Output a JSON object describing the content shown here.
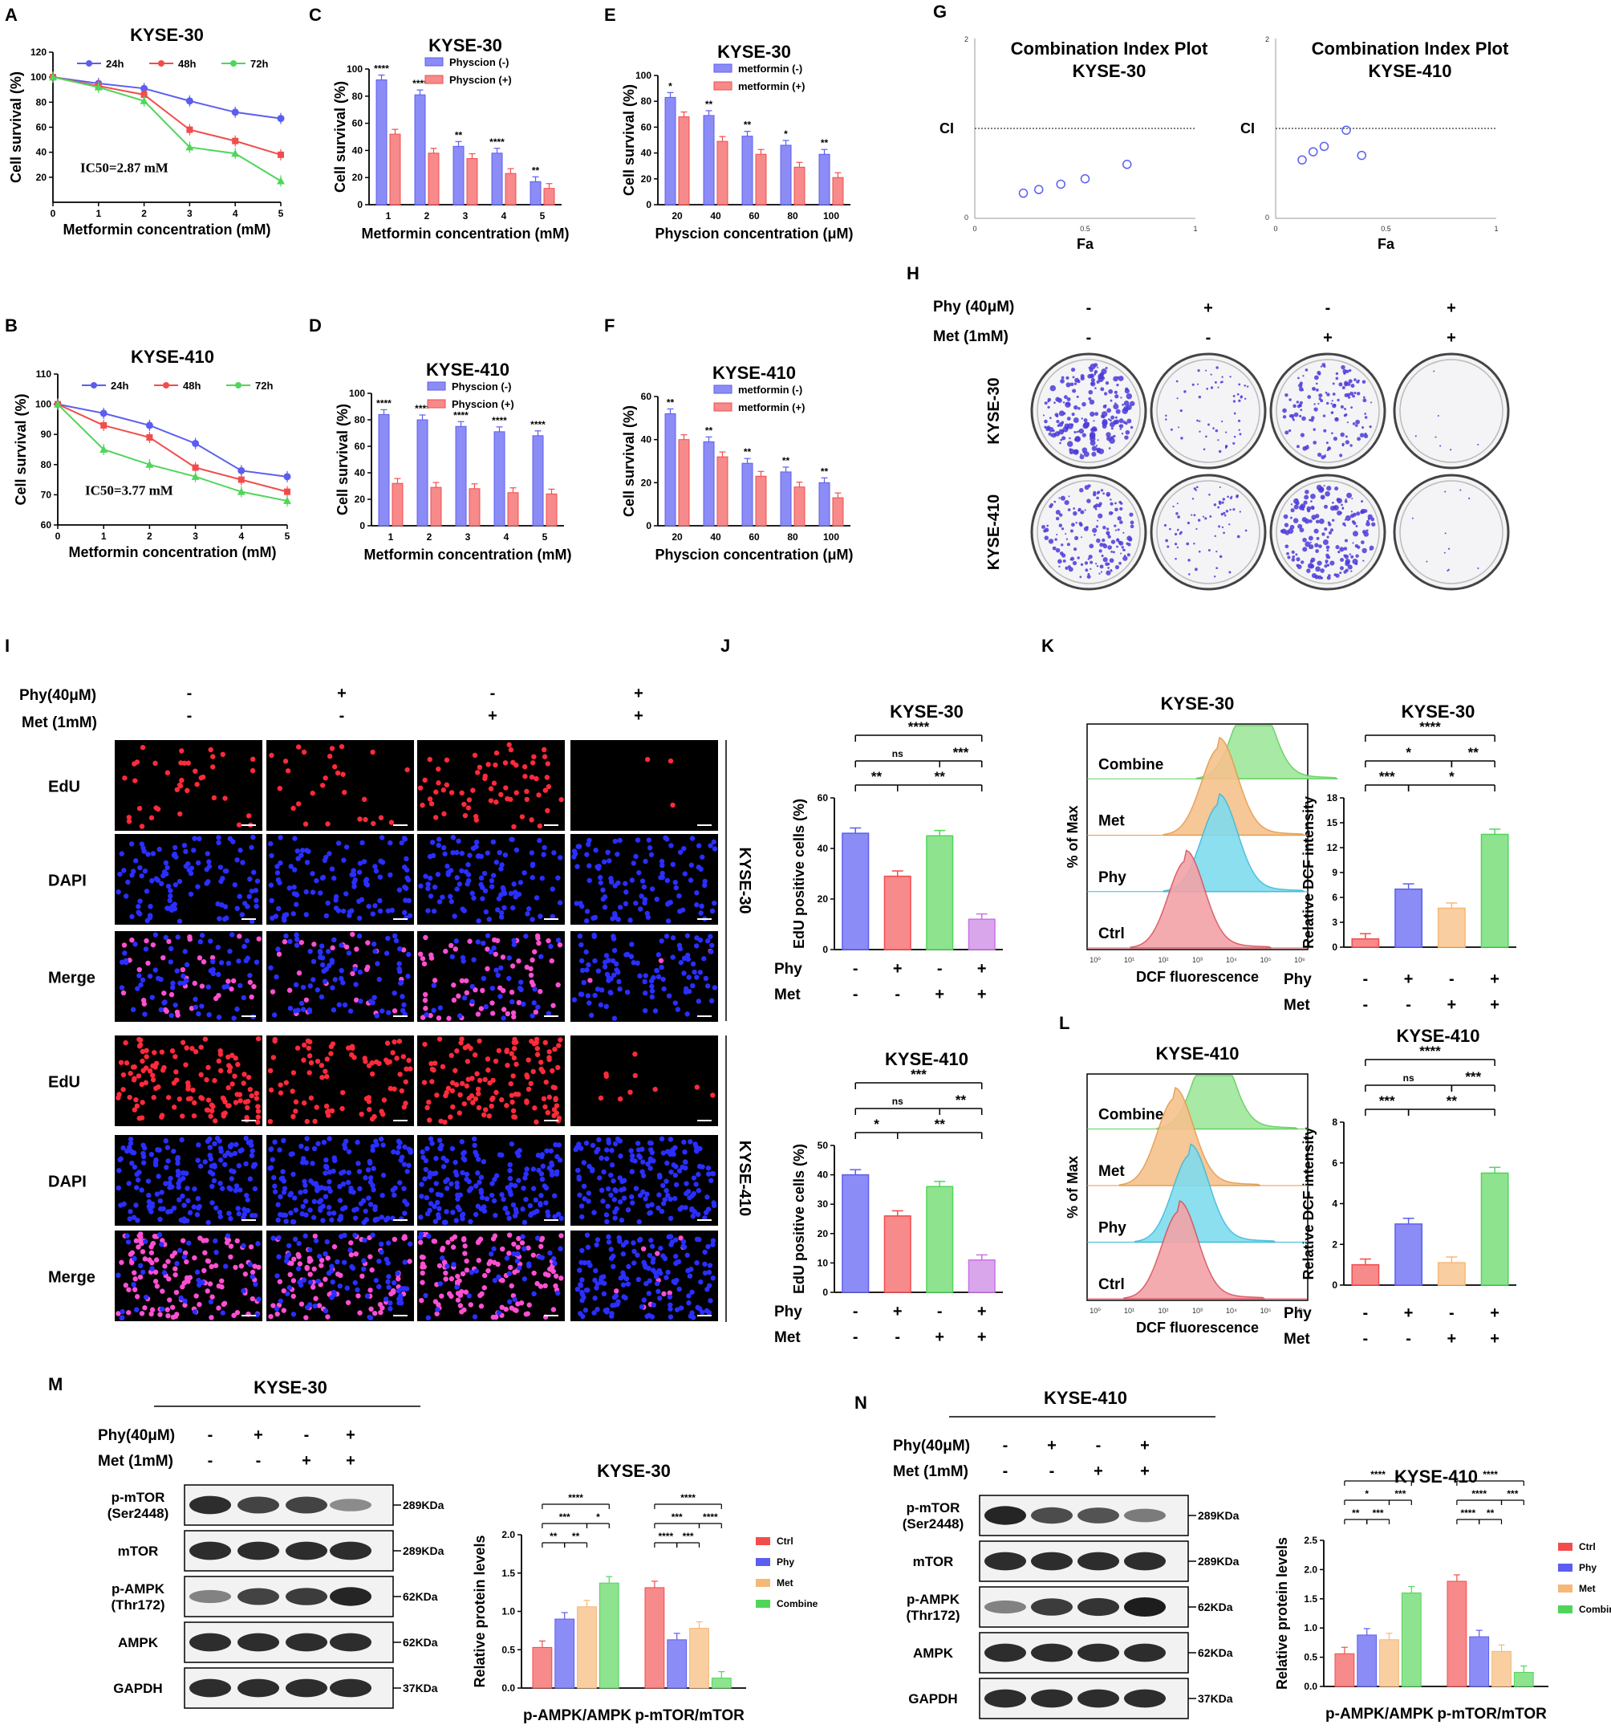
{
  "panel_letters": {
    "A": "A",
    "B": "B",
    "C": "C",
    "D": "D",
    "E": "E",
    "F": "F",
    "G": "G",
    "H": "H",
    "I": "I",
    "J": "J",
    "K": "K",
    "L": "L",
    "M": "M",
    "N": "N"
  },
  "colors": {
    "blue": "#5b5ef0",
    "red": "#f24c4c",
    "green": "#4fd65a",
    "orange": "#f6b877",
    "purple": "#c873e6",
    "ltblue": "#8c8cf6",
    "ltred": "#f78a8a",
    "ltgreen": "#8ee38e",
    "ltorange": "#f9cfa1",
    "ltpurple": "#d9a6ec"
  },
  "chart_data": [
    {
      "panel": "A",
      "type": "line",
      "title": "KYSE-30",
      "xlabel": "Metformin concentration (mM)",
      "ylabel": "Cell survival (%)",
      "x": [
        0,
        1,
        2,
        3,
        4,
        5
      ],
      "xlim": [
        0,
        5
      ],
      "ylim": [
        0,
        120
      ],
      "yticks": [
        20,
        40,
        60,
        80,
        100,
        120
      ],
      "series": [
        {
          "name": "24h",
          "values": [
            100,
            95,
            91,
            81,
            72,
            67
          ]
        },
        {
          "name": "48h",
          "values": [
            100,
            93,
            86,
            58,
            49,
            38
          ]
        },
        {
          "name": "72h",
          "values": [
            100,
            92,
            81,
            44,
            39,
            17
          ]
        }
      ],
      "annotation": "IC50=2.87 mM"
    },
    {
      "panel": "B",
      "type": "line",
      "title": "KYSE-410",
      "xlabel": "Metformin concentration (mM)",
      "ylabel": "Cell survival (%)",
      "x": [
        0,
        1,
        2,
        3,
        4,
        5
      ],
      "xlim": [
        0,
        5
      ],
      "ylim": [
        60,
        110
      ],
      "yticks": [
        60,
        70,
        80,
        90,
        100,
        110
      ],
      "series": [
        {
          "name": "24h",
          "values": [
            100,
            97,
            93,
            87,
            78,
            76
          ]
        },
        {
          "name": "48h",
          "values": [
            100,
            93,
            89,
            79,
            75,
            71
          ]
        },
        {
          "name": "72h",
          "values": [
            100,
            85,
            80,
            76,
            71,
            68
          ]
        }
      ],
      "annotation": "IC50=3.77 mM"
    },
    {
      "panel": "C",
      "type": "bar",
      "title": "KYSE-30",
      "xlabel": "Metformin concentration (mM)",
      "ylabel": "Cell survival (%)",
      "categories": [
        "1",
        "2",
        "3",
        "4",
        "5"
      ],
      "ylim": [
        0,
        100
      ],
      "yticks": [
        0,
        20,
        40,
        60,
        80,
        100
      ],
      "series": [
        {
          "name": "Physcion (-)",
          "values": [
            92,
            81,
            43,
            38,
            17
          ]
        },
        {
          "name": "Physcion (+)",
          "values": [
            52,
            38,
            34,
            23,
            12
          ]
        }
      ],
      "significance": [
        "****",
        "****",
        "**",
        "****",
        "**"
      ]
    },
    {
      "panel": "D",
      "type": "bar",
      "title": "KYSE-410",
      "xlabel": "Metformin concentration (mM)",
      "ylabel": "Cell survival (%)",
      "categories": [
        "1",
        "2",
        "3",
        "4",
        "5"
      ],
      "ylim": [
        0,
        100
      ],
      "yticks": [
        0,
        20,
        40,
        60,
        80,
        100
      ],
      "series": [
        {
          "name": "Physcion (-)",
          "values": [
            84,
            80,
            75,
            71,
            68
          ]
        },
        {
          "name": "Physcion (+)",
          "values": [
            32,
            29,
            28,
            25,
            24
          ]
        }
      ],
      "significance": [
        "****",
        "****",
        "****",
        "****",
        "****"
      ]
    },
    {
      "panel": "E",
      "type": "bar",
      "title": "KYSE-30",
      "xlabel": "Physcion concentration (μM)",
      "ylabel": "Cell survival (%)",
      "categories": [
        "20",
        "40",
        "60",
        "80",
        "100"
      ],
      "ylim": [
        0,
        100
      ],
      "yticks": [
        0,
        20,
        40,
        60,
        80,
        100
      ],
      "series": [
        {
          "name": "metformin (-)",
          "values": [
            83,
            69,
            53,
            46,
            39
          ]
        },
        {
          "name": "metformin (+)",
          "values": [
            68,
            49,
            39,
            29,
            21
          ]
        }
      ],
      "significance": [
        "*",
        "**",
        "**",
        "*",
        "**"
      ]
    },
    {
      "panel": "F",
      "type": "bar",
      "title": "KYSE-410",
      "xlabel": "Physcion concentration (μM)",
      "ylabel": "Cell survival (%)",
      "categories": [
        "20",
        "40",
        "60",
        "80",
        "100"
      ],
      "ylim": [
        0,
        60
      ],
      "yticks": [
        0,
        20,
        40,
        60
      ],
      "series": [
        {
          "name": "metformin (-)",
          "values": [
            52,
            39,
            29,
            25,
            20
          ]
        },
        {
          "name": "metformin (+)",
          "values": [
            40,
            32,
            23,
            18,
            13
          ]
        }
      ],
      "significance": [
        "**",
        "**",
        "**",
        "**",
        "**"
      ]
    },
    {
      "panel": "G1",
      "type": "scatter",
      "title": "Combination Index Plot",
      "subtitle": "KYSE-30",
      "xlabel": "Fa",
      "ylabel": "CI",
      "xlim": [
        0,
        1
      ],
      "ylim": [
        0,
        2
      ],
      "xticks": [
        "0",
        "0.5",
        "1"
      ],
      "yticks": [
        "0",
        "2"
      ],
      "reference_line": 1,
      "x": [
        0.22,
        0.29,
        0.39,
        0.5,
        0.69
      ],
      "y": [
        0.28,
        0.32,
        0.38,
        0.44,
        0.6
      ]
    },
    {
      "panel": "G2",
      "type": "scatter",
      "title": "Combination Index Plot",
      "subtitle": "KYSE-410",
      "xlabel": "Fa",
      "ylabel": "CI",
      "xlim": [
        0,
        1
      ],
      "ylim": [
        0,
        2
      ],
      "xticks": [
        "0",
        "0.5",
        "1"
      ],
      "yticks": [
        "0",
        "2"
      ],
      "reference_line": 1,
      "x": [
        0.12,
        0.17,
        0.22,
        0.32,
        0.39
      ],
      "y": [
        0.65,
        0.74,
        0.8,
        0.98,
        0.7
      ]
    },
    {
      "panel": "J1",
      "type": "bar",
      "title": "KYSE-30",
      "ylabel": "EdU positive cells  (%)",
      "categories": [
        "Ctrl",
        "Phy",
        "Met",
        "Combine"
      ],
      "ylim": [
        0,
        60
      ],
      "yticks": [
        0,
        20,
        40,
        60
      ],
      "values": [
        46,
        29,
        45,
        12
      ],
      "comparisons": [
        [
          "****",
          "1-4"
        ],
        [
          "ns",
          "1-3"
        ],
        [
          "***",
          "3-4"
        ],
        [
          "**",
          "1-2"
        ],
        [
          "**",
          "2-4"
        ]
      ]
    },
    {
      "panel": "J2",
      "type": "bar",
      "title": "KYSE-410",
      "ylabel": "EdU positive cells  (%)",
      "categories": [
        "Ctrl",
        "Phy",
        "Met",
        "Combine"
      ],
      "ylim": [
        0,
        50
      ],
      "yticks": [
        0,
        10,
        20,
        30,
        40,
        50
      ],
      "values": [
        40,
        26,
        36,
        11
      ],
      "comparisons": [
        [
          "***",
          "1-4"
        ],
        [
          "ns",
          "1-3"
        ],
        [
          "**",
          "3-4"
        ],
        [
          "*",
          "1-2"
        ],
        [
          "**",
          "2-4"
        ]
      ]
    },
    {
      "panel": "K",
      "type": "bar",
      "title": "KYSE-30",
      "ylabel": "Relative DCF intensity",
      "categories": [
        "Ctrl",
        "Phy",
        "Met",
        "Combine"
      ],
      "ylim": [
        0,
        18
      ],
      "yticks": [
        0,
        3,
        6,
        9,
        12,
        15,
        18
      ],
      "values": [
        1,
        7,
        4.7,
        13.6
      ],
      "comparisons": [
        [
          "****",
          "1-4"
        ],
        [
          "*",
          "1-3"
        ],
        [
          "**",
          "3-4"
        ],
        [
          "***",
          "1-2"
        ],
        [
          "*",
          "2-4"
        ]
      ]
    },
    {
      "panel": "L",
      "type": "bar",
      "title": "KYSE-410",
      "ylabel": "Relative DCF intensity",
      "categories": [
        "Ctrl",
        "Phy",
        "Met",
        "Combine"
      ],
      "ylim": [
        0,
        8
      ],
      "yticks": [
        0,
        2,
        4,
        6,
        8
      ],
      "values": [
        1,
        3,
        1.1,
        5.5
      ],
      "comparisons": [
        [
          "****",
          "1-4"
        ],
        [
          "ns",
          "1-3"
        ],
        [
          "***",
          "3-4"
        ],
        [
          "***",
          "1-2"
        ],
        [
          "**",
          "2-4"
        ]
      ]
    },
    {
      "panel": "M",
      "type": "bar",
      "title": "KYSE-30",
      "ylabel": "Relative protein levels",
      "categories": [
        "p-AMPK/AMPK",
        "p-mTOR/mTOR"
      ],
      "ylim": [
        0,
        2
      ],
      "yticks": [
        0.0,
        0.5,
        1.0,
        1.5,
        2.0
      ],
      "series": [
        {
          "name": "Ctrl",
          "values": [
            0.53,
            1.31
          ]
        },
        {
          "name": "Phy",
          "values": [
            0.9,
            0.63
          ]
        },
        {
          "name": "Met",
          "values": [
            1.06,
            0.78
          ]
        },
        {
          "name": "Combine",
          "values": [
            1.37,
            0.13
          ]
        }
      ],
      "sig_left": [
        "****",
        "***",
        "*",
        "**",
        "**"
      ],
      "sig_right": [
        "****",
        "***",
        "****",
        "****",
        "***"
      ]
    },
    {
      "panel": "N",
      "type": "bar",
      "title": "KYSE-410",
      "ylabel": "Relative protein levels",
      "categories": [
        "p-AMPK/AMPK",
        "p-mTOR/mTOR"
      ],
      "ylim": [
        0,
        2.5
      ],
      "yticks": [
        0.0,
        0.5,
        1.0,
        1.5,
        2.0,
        2.5
      ],
      "series": [
        {
          "name": "Ctrl",
          "values": [
            0.56,
            1.8
          ]
        },
        {
          "name": "Phy",
          "values": [
            0.88,
            0.85
          ]
        },
        {
          "name": "Met",
          "values": [
            0.8,
            0.6
          ]
        },
        {
          "name": "Combine",
          "values": [
            1.6,
            0.24
          ]
        }
      ],
      "sig_left": [
        "****",
        "*",
        "***",
        "**",
        "***"
      ],
      "sig_right": [
        "****",
        "****",
        "***",
        "****",
        "**"
      ]
    }
  ],
  "panel_H": {
    "rows": [
      "KYSE-30",
      "KYSE-410"
    ],
    "cond1": "Phy (40μM)",
    "cond2": "Met (1mM)",
    "cond1_signs": [
      "-",
      "+",
      "-",
      "+"
    ],
    "cond2_signs": [
      "-",
      "-",
      "+",
      "+"
    ]
  },
  "panel_I": {
    "cond1": "Phy(40μM)",
    "cond2": "Met (1mM)",
    "cond1_signs": [
      "-",
      "+",
      "-",
      "+"
    ],
    "cond2_signs": [
      "-",
      "-",
      "+",
      "+"
    ],
    "rows": [
      "EdU",
      "DAPI",
      "Merge",
      "EdU",
      "DAPI",
      "Merge"
    ],
    "groups": [
      "KYSE-30",
      "KYSE-410"
    ]
  },
  "panel_K_flow": {
    "title": "KYSE-30",
    "xlabel": "DCF fluorescence",
    "ylabel": "% of Max",
    "tracks": [
      "Combine",
      "Met",
      "Phy",
      "Ctrl"
    ],
    "xticks": [
      "10⁰",
      "10¹",
      "10²",
      "10³",
      "10⁴",
      "10⁵",
      "10⁶"
    ]
  },
  "panel_L_flow": {
    "title": "KYSE-410",
    "xlabel": "DCF fluorescence",
    "ylabel": "% of Max",
    "tracks": [
      "Combine",
      "Met",
      "Phy",
      "Ctrl"
    ],
    "xticks": [
      "10⁰",
      "10¹",
      "10²",
      "10³",
      "10⁴",
      "10⁵",
      "10⁶"
    ]
  },
  "panel_M_blot": {
    "title": "KYSE-30",
    "cond1": "Phy(40μM)",
    "cond2": "Met (1mM)",
    "cond1_signs": [
      "-",
      "+",
      "-",
      "+"
    ],
    "cond2_signs": [
      "-",
      "-",
      "+",
      "+"
    ],
    "bands": [
      {
        "label": "p-mTOR\n(Ser2448)",
        "kda": "289KDa"
      },
      {
        "label": "mTOR",
        "kda": "289KDa"
      },
      {
        "label": "p-AMPK\n(Thr172)",
        "kda": "62KDa"
      },
      {
        "label": "AMPK",
        "kda": "62KDa"
      },
      {
        "label": "GAPDH",
        "kda": "37KDa"
      }
    ]
  },
  "panel_N_blot": {
    "title": "KYSE-410",
    "cond1": "Phy(40μM)",
    "cond2": "Met (1mM)",
    "cond1_signs": [
      "-",
      "+",
      "-",
      "+"
    ],
    "cond2_signs": [
      "-",
      "-",
      "+",
      "+"
    ],
    "bands": [
      {
        "label": "p-mTOR\n(Ser2448)",
        "kda": "289KDa"
      },
      {
        "label": "mTOR",
        "kda": "289KDa"
      },
      {
        "label": "p-AMPK\n(Thr172)",
        "kda": "62KDa"
      },
      {
        "label": "AMPK",
        "kda": "62KDa"
      },
      {
        "label": "GAPDH",
        "kda": "37KDa"
      }
    ]
  },
  "bar_group_labels": {
    "phy": "Phy",
    "met": "Met",
    "phy_signs": [
      "-",
      "+",
      "-",
      "+"
    ],
    "met_signs": [
      "-",
      "-",
      "+",
      "+"
    ]
  }
}
